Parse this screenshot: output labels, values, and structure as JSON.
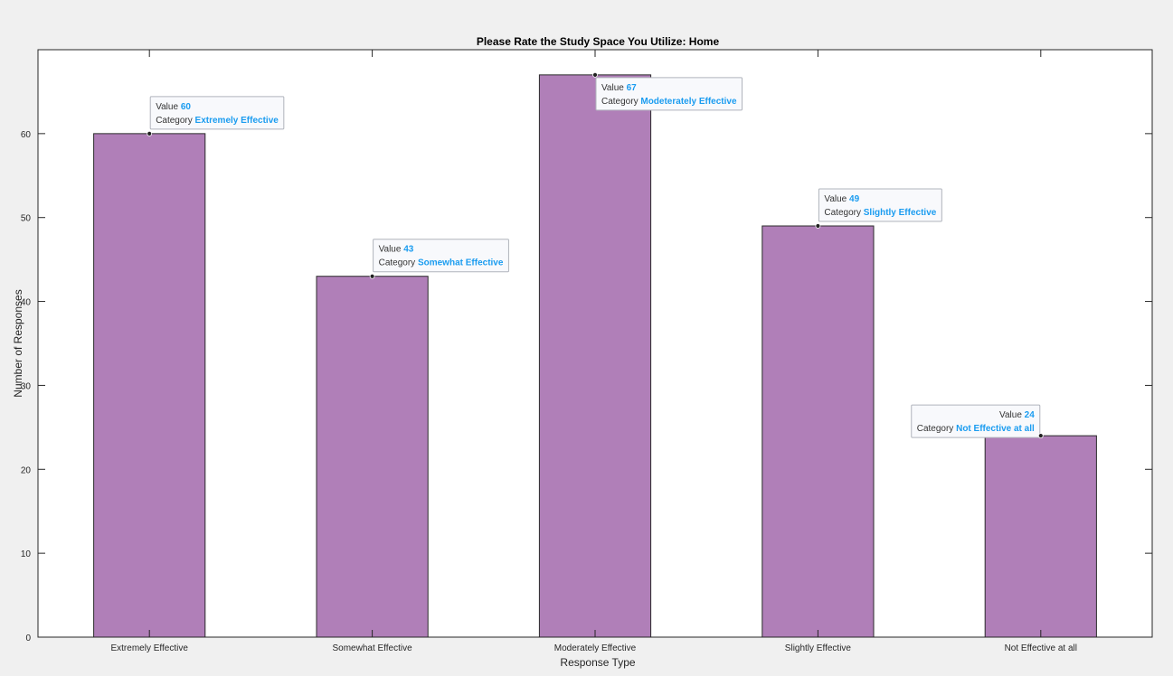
{
  "colors": {
    "figure_bg": "#f0f0f0",
    "axes_bg": "#ffffff",
    "bar_fill": "#b07fb8",
    "bar_edge": "#2b2b2b",
    "datatip_accent": "#1a9cf0",
    "datatip_bg": "#f8f9fc",
    "datatip_border": "#b0b4bc"
  },
  "chart_data": {
    "type": "bar",
    "title": "Please Rate the Study Space You Utilize: Home",
    "xlabel": "Response Type",
    "ylabel": "Number of Responses",
    "categories": [
      "Extremely Effective",
      "Somewhat Effective",
      "Moderately Effective",
      "Slightly Effective",
      "Not Effective at all"
    ],
    "values": [
      60,
      43,
      67,
      49,
      24
    ],
    "ylim": [
      0,
      70
    ],
    "yticks": [
      0,
      10,
      20,
      30,
      40,
      50,
      60
    ],
    "grid": false,
    "datatips": [
      {
        "value_label": "Value",
        "value": "60",
        "category_label": "Category",
        "category": "Extremely Effective",
        "side": "right"
      },
      {
        "value_label": "Value",
        "value": "43",
        "category_label": "Category",
        "category": "Somewhat Effective",
        "side": "right"
      },
      {
        "value_label": "Value",
        "value": "67",
        "category_label": "Category",
        "category": "Modeterately Effective",
        "side": "right-below"
      },
      {
        "value_label": "Value",
        "value": "49",
        "category_label": "Category",
        "category": "Slightly Effective",
        "side": "right"
      },
      {
        "value_label": "Value",
        "value": "24",
        "category_label": "Category",
        "category": "Not Effective at all",
        "side": "left"
      }
    ]
  }
}
